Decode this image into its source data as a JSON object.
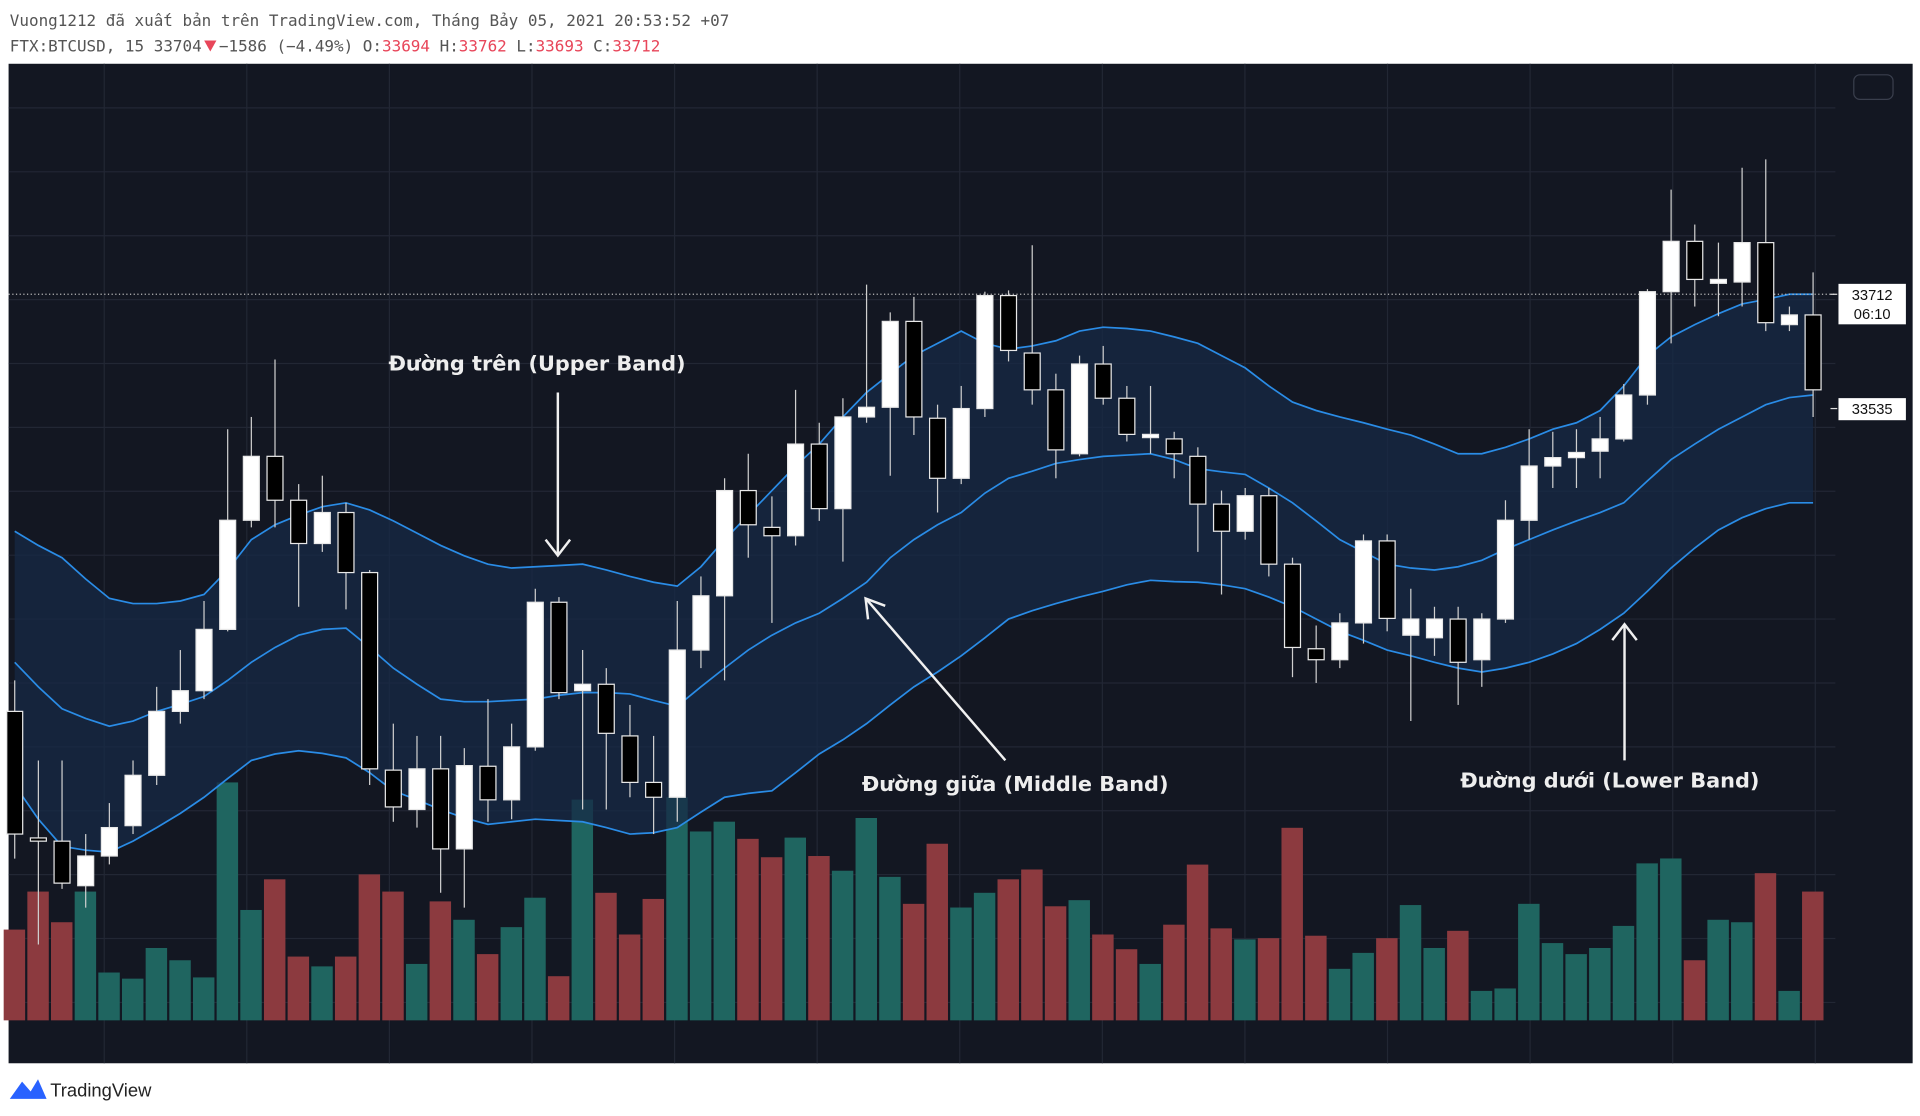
{
  "header": {
    "published": "Vuong1212 đã xuất bản trên TradingView.com, Tháng Bảy 05, 2021 20:53:52 +07",
    "symbol": "FTX:BTCUSD, 15",
    "last": 33704,
    "change": "−1586 (−4.49%)",
    "ohlc": [
      {
        "label": "O:",
        "value": 33694
      },
      {
        "label": "H:",
        "value": 33762
      },
      {
        "label": "L:",
        "value": 33693
      },
      {
        "label": "C:",
        "value": 33712
      }
    ]
  },
  "chart_data": {
    "type": "candlestick",
    "ylim": [
      32521,
      34069
    ],
    "y2lim": [
      0,
      200
    ],
    "up_color": "#ffffff",
    "down_color": "#000000",
    "wick_color": "#cfcfcf",
    "band_color": "#2a8ce6",
    "band_fill": "#172a46",
    "volume_up_color": "#1f6560",
    "volume_down_color": "#8c3a3f",
    "ohlc": [
      [
        33066,
        33114,
        32838,
        32876
      ],
      [
        32870,
        32990,
        32705,
        32865
      ],
      [
        32865,
        32990,
        32791,
        32800
      ],
      [
        32796,
        32876,
        32762,
        32842
      ],
      [
        32842,
        32924,
        32829,
        32886
      ],
      [
        32889,
        32990,
        32876,
        32967
      ],
      [
        32967,
        33104,
        32952,
        33066
      ],
      [
        33066,
        33161,
        33047,
        33098
      ],
      [
        33098,
        33237,
        33085,
        33193
      ],
      [
        33193,
        33503,
        33190,
        33362
      ],
      [
        33362,
        33522,
        33351,
        33461
      ],
      [
        33461,
        33611,
        33351,
        33393
      ],
      [
        33393,
        33418,
        33228,
        33326
      ],
      [
        33326,
        33431,
        33313,
        33374
      ],
      [
        33374,
        33389,
        33224,
        33281
      ],
      [
        33281,
        33285,
        32952,
        32977
      ],
      [
        32975,
        33047,
        32895,
        32918
      ],
      [
        32914,
        33028,
        32886,
        32977
      ],
      [
        32977,
        33028,
        32785,
        32853
      ],
      [
        32853,
        33009,
        32762,
        32982
      ],
      [
        32981,
        33085,
        32895,
        32929
      ],
      [
        32929,
        33047,
        32899,
        33011
      ],
      [
        33011,
        33256,
        33005,
        33235
      ],
      [
        33235,
        33243,
        33085,
        33095
      ],
      [
        33098,
        33161,
        32914,
        33108
      ],
      [
        33108,
        33133,
        32914,
        33032
      ],
      [
        33028,
        33076,
        32933,
        32956
      ],
      [
        32956,
        33028,
        32876,
        32933
      ],
      [
        32933,
        33237,
        32895,
        33161
      ],
      [
        33161,
        33275,
        33133,
        33245
      ],
      [
        33245,
        33427,
        33114,
        33408
      ],
      [
        33408,
        33465,
        33304,
        33355
      ],
      [
        33351,
        33399,
        33203,
        33338
      ],
      [
        33338,
        33564,
        33323,
        33480
      ],
      [
        33480,
        33513,
        33361,
        33380
      ],
      [
        33380,
        33551,
        33298,
        33522
      ],
      [
        33522,
        33727,
        33513,
        33537
      ],
      [
        33537,
        33684,
        33431,
        33670
      ],
      [
        33670,
        33708,
        33494,
        33522
      ],
      [
        33520,
        33541,
        33374,
        33427
      ],
      [
        33427,
        33570,
        33418,
        33535
      ],
      [
        33535,
        33716,
        33522,
        33710
      ],
      [
        33710,
        33718,
        33608,
        33625
      ],
      [
        33621,
        33788,
        33541,
        33564
      ],
      [
        33564,
        33589,
        33427,
        33471
      ],
      [
        33465,
        33617,
        33461,
        33604
      ],
      [
        33604,
        33632,
        33541,
        33551
      ],
      [
        33551,
        33570,
        33484,
        33495
      ],
      [
        33490,
        33570,
        33465,
        33495
      ],
      [
        33488,
        33499,
        33427,
        33465
      ],
      [
        33461,
        33475,
        33313,
        33387
      ],
      [
        33387,
        33408,
        33247,
        33345
      ],
      [
        33345,
        33412,
        33332,
        33400
      ],
      [
        33400,
        33412,
        33275,
        33294
      ],
      [
        33294,
        33304,
        33119,
        33165
      ],
      [
        33163,
        33199,
        33110,
        33146
      ],
      [
        33146,
        33218,
        33133,
        33203
      ],
      [
        33203,
        33340,
        33171,
        33330
      ],
      [
        33330,
        33340,
        33190,
        33210
      ],
      [
        33184,
        33256,
        33051,
        33209
      ],
      [
        33180,
        33228,
        33152,
        33209
      ],
      [
        33209,
        33228,
        33076,
        33142
      ],
      [
        33146,
        33218,
        33104,
        33209
      ],
      [
        33209,
        33393,
        33203,
        33362
      ],
      [
        33362,
        33503,
        33332,
        33446
      ],
      [
        33446,
        33499,
        33412,
        33459
      ],
      [
        33459,
        33503,
        33412,
        33467
      ],
      [
        33469,
        33522,
        33427,
        33488
      ],
      [
        33488,
        33573,
        33484,
        33556
      ],
      [
        33556,
        33720,
        33541,
        33716
      ],
      [
        33716,
        33874,
        33636,
        33794
      ],
      [
        33794,
        33820,
        33693,
        33735
      ],
      [
        33729,
        33792,
        33678,
        33735
      ],
      [
        33731,
        33908,
        33693,
        33792
      ],
      [
        33792,
        33921,
        33655,
        33668
      ],
      [
        33665,
        33693,
        33655,
        33680
      ],
      [
        33680,
        33746,
        33522,
        33564
      ]
    ],
    "volume": [
      74,
      105,
      80,
      105,
      39,
      34,
      59,
      49,
      35,
      194,
      90,
      115,
      52,
      44,
      52,
      119,
      105,
      46,
      97,
      82,
      54,
      76,
      100,
      36,
      180,
      104,
      70,
      99,
      182,
      154,
      162,
      148,
      133,
      149,
      134,
      122,
      165,
      117,
      95,
      144,
      92,
      104,
      115,
      123,
      93,
      98,
      70,
      58,
      46,
      78,
      127,
      75,
      66,
      67,
      157,
      69,
      42,
      55,
      67,
      94,
      59,
      73,
      24,
      26,
      95,
      63,
      54,
      59,
      77,
      128,
      132,
      49,
      82,
      80,
      120,
      24,
      105
    ],
    "bands": {
      "upper": [
        33345,
        33323,
        33304,
        33271,
        33241,
        33233,
        33233,
        33237,
        33247,
        33285,
        33332,
        33355,
        33370,
        33383,
        33389,
        33378,
        33361,
        33342,
        33323,
        33307,
        33294,
        33288,
        33290,
        33292,
        33294,
        33285,
        33275,
        33266,
        33260,
        33290,
        33332,
        33370,
        33408,
        33446,
        33480,
        33522,
        33560,
        33589,
        33617,
        33636,
        33655,
        33636,
        33627,
        33632,
        33640,
        33655,
        33661,
        33659,
        33655,
        33646,
        33636,
        33617,
        33598,
        33570,
        33545,
        33532,
        33522,
        33513,
        33503,
        33494,
        33480,
        33465,
        33465,
        33475,
        33488,
        33503,
        33513,
        33532,
        33570,
        33617,
        33646,
        33665,
        33682,
        33697,
        33704,
        33712,
        33712
      ],
      "middle": [
        33142,
        33104,
        33070,
        33055,
        33043,
        33051,
        33066,
        33077,
        33089,
        33114,
        33142,
        33165,
        33184,
        33193,
        33195,
        33165,
        33133,
        33108,
        33085,
        33081,
        33081,
        33083,
        33085,
        33091,
        33095,
        33095,
        33093,
        33083,
        33074,
        33104,
        33133,
        33161,
        33184,
        33203,
        33218,
        33241,
        33266,
        33304,
        33332,
        33355,
        33374,
        33404,
        33427,
        33438,
        33450,
        33456,
        33461,
        33463,
        33465,
        33456,
        33442,
        33437,
        33433,
        33412,
        33389,
        33361,
        33332,
        33313,
        33294,
        33288,
        33285,
        33290,
        33300,
        33317,
        33332,
        33347,
        33361,
        33374,
        33389,
        33423,
        33456,
        33480,
        33503,
        33522,
        33541,
        33552,
        33556
      ],
      "lower": [
        32952,
        32899,
        32857,
        32851,
        32848,
        32865,
        32886,
        32908,
        32933,
        32962,
        32990,
        33000,
        33005,
        33001,
        32994,
        32971,
        32943,
        32929,
        32914,
        32901,
        32891,
        32895,
        32899,
        32897,
        32895,
        32886,
        32876,
        32878,
        32886,
        32910,
        32933,
        32939,
        32943,
        32971,
        33000,
        33022,
        33047,
        33076,
        33104,
        33127,
        33152,
        33180,
        33209,
        33222,
        33233,
        33243,
        33252,
        33262,
        33269,
        33267,
        33266,
        33262,
        33256,
        33243,
        33228,
        33209,
        33190,
        33176,
        33161,
        33152,
        33142,
        33133,
        33127,
        33133,
        33142,
        33155,
        33171,
        33193,
        33218,
        33252,
        33288,
        33319,
        33347,
        33366,
        33380,
        33389,
        33389
      ]
    },
    "price_labels": [
      {
        "value": 33712,
        "time": "06:10"
      },
      {
        "value": 33535
      }
    ],
    "annotations": [
      "Đường trên (Upper Band)",
      "Đường giữa (Middle Band)",
      "Đường dưới (Lower Band)"
    ]
  },
  "footer": {
    "brand": "TradingView"
  }
}
